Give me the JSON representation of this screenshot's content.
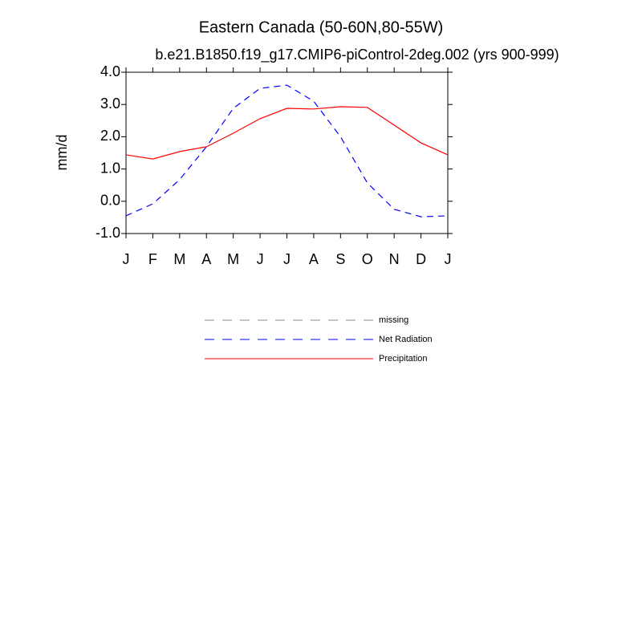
{
  "chart_data": {
    "type": "line",
    "title": "Eastern Canada (50-60N,80-55W)",
    "subtitle": "b.e21.B1850.f19_g17.CMIP6-piControl-2deg.002 (yrs 900-999)",
    "y_label": "mm/d",
    "categories": [
      "J",
      "F",
      "M",
      "A",
      "M",
      "J",
      "J",
      "A",
      "S",
      "O",
      "N",
      "D",
      "J"
    ],
    "series": [
      {
        "name": "missing",
        "color": "#888888",
        "dashed": true,
        "values": [
          null,
          null,
          null,
          null,
          null,
          null,
          null,
          null,
          null,
          null,
          null,
          null,
          null
        ]
      },
      {
        "name": "Net Radiation",
        "color": "#0000ff",
        "dashed": true,
        "values": [
          -0.45,
          -0.08,
          0.67,
          1.69,
          2.88,
          3.5,
          3.6,
          3.1,
          2.0,
          0.57,
          -0.25,
          -0.48,
          -0.45
        ]
      },
      {
        "name": "Precipitation",
        "color": "#ff0000",
        "dashed": false,
        "values": [
          1.44,
          1.31,
          1.54,
          1.69,
          2.11,
          2.56,
          2.88,
          2.86,
          2.93,
          2.91,
          2.36,
          1.81,
          1.44
        ]
      }
    ],
    "ylim": [
      -1,
      4
    ],
    "yticks": [
      {
        "value": 4,
        "label": "4.0"
      },
      {
        "value": 3,
        "label": "3.0"
      },
      {
        "value": 2,
        "label": "2.0"
      },
      {
        "value": 1,
        "label": "1.0"
      },
      {
        "value": 0,
        "label": "0.0"
      },
      {
        "value": -1,
        "label": "-1.0"
      }
    ],
    "grid": false
  }
}
